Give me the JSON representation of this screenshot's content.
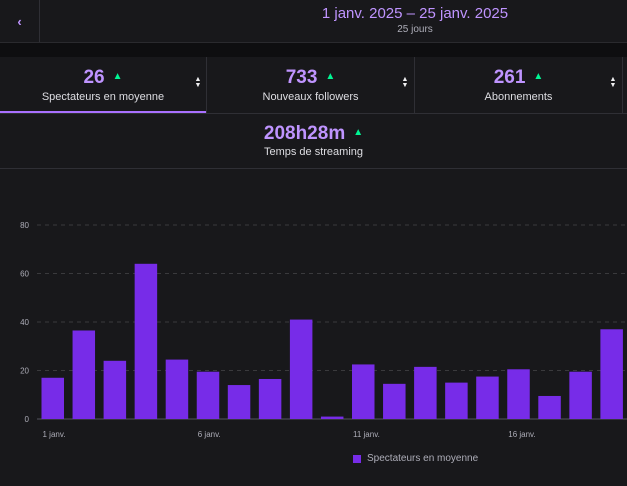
{
  "header": {
    "back_icon": "chevron-left-icon",
    "date_range": "1 janv. 2025 – 25 janv. 2025",
    "days": "25 jours"
  },
  "stats": [
    {
      "value": "26",
      "label": "Spectateurs en moyenne",
      "trend": "up",
      "active": true
    },
    {
      "value": "733",
      "label": "Nouveaux followers",
      "trend": "up",
      "active": false
    },
    {
      "value": "261",
      "label": "Abonnements",
      "trend": "up",
      "active": false
    }
  ],
  "stream_time": {
    "value": "208h28m",
    "label": "Temps de streaming",
    "trend": "up"
  },
  "colors": {
    "accent": "#bf94ff",
    "bar": "#772ce8",
    "trend_up": "#00f593"
  },
  "chart_data": {
    "type": "bar",
    "title": "",
    "xlabel": "",
    "ylabel": "",
    "ylim": [
      0,
      80
    ],
    "yticks": [
      0,
      20,
      40,
      60,
      80
    ],
    "x_tick_labels": [
      {
        "index": 0,
        "label": "1 janv."
      },
      {
        "index": 5,
        "label": "6 janv."
      },
      {
        "index": 10,
        "label": "11 janv."
      },
      {
        "index": 15,
        "label": "16 janv."
      }
    ],
    "categories": [
      "1 janv.",
      "2 janv.",
      "3 janv.",
      "4 janv.",
      "5 janv.",
      "6 janv.",
      "7 janv.",
      "8 janv.",
      "9 janv.",
      "10 janv.",
      "11 janv.",
      "12 janv.",
      "13 janv.",
      "14 janv.",
      "15 janv.",
      "16 janv.",
      "17 janv.",
      "18 janv.",
      "19 janv.",
      "20 janv."
    ],
    "series": [
      {
        "name": "Spectateurs en moyenne",
        "values": [
          17,
          36.5,
          24,
          64,
          24.5,
          19.5,
          14,
          16.5,
          41,
          1,
          22.5,
          14.5,
          21.5,
          15,
          17.5,
          20.5,
          9.5,
          19.5,
          37,
          0
        ]
      }
    ],
    "grid": true,
    "legend": "bottom"
  }
}
